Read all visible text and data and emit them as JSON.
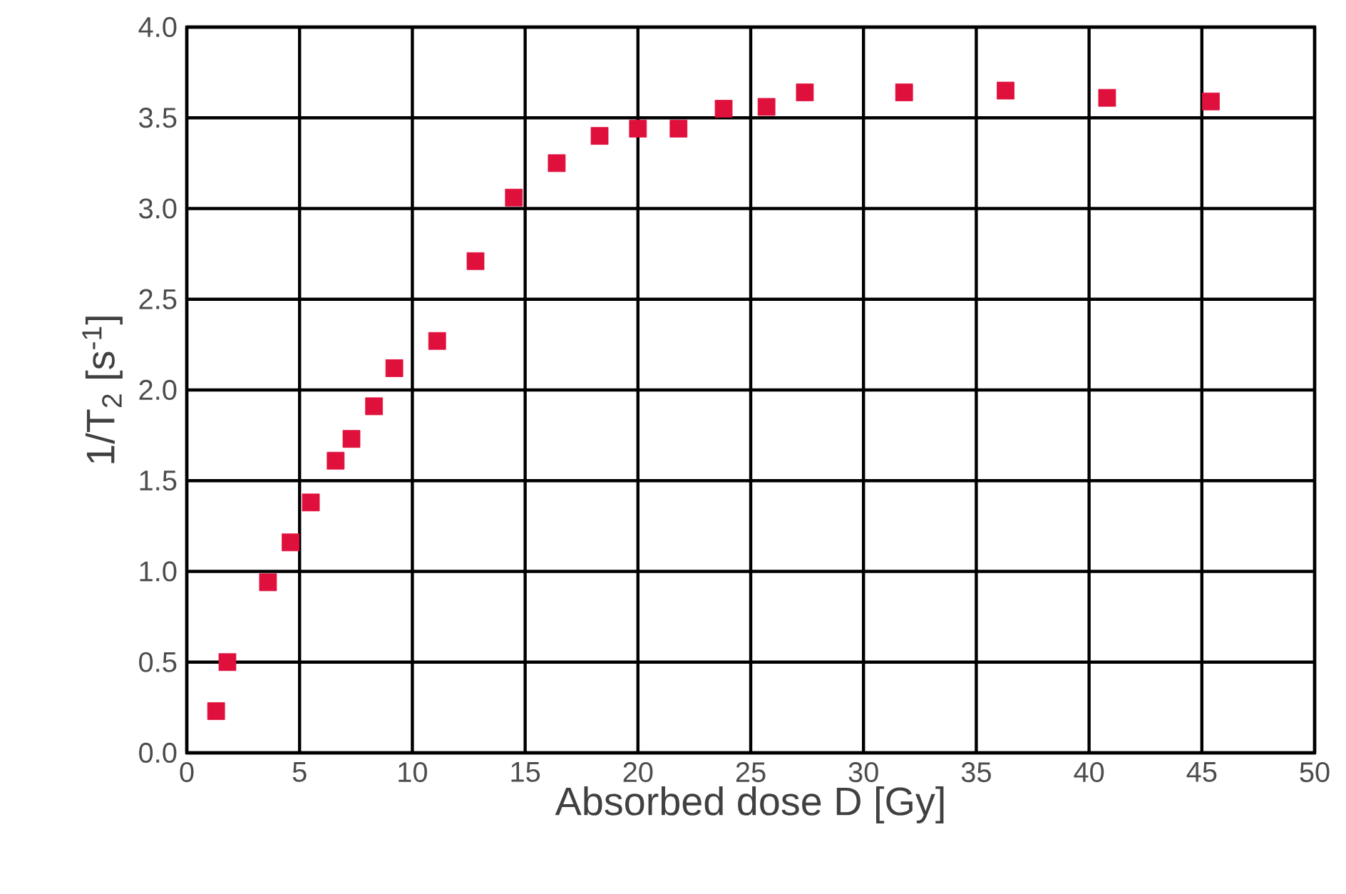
{
  "chart_data": {
    "type": "scatter",
    "xlabel": "Absorbed dose D [Gy]",
    "ylabel": "1/T$_{2}$ [s$^{-1}$]",
    "x": [
      1.3,
      1.8,
      3.6,
      4.6,
      5.5,
      6.6,
      7.3,
      8.3,
      9.2,
      11.1,
      12.8,
      14.5,
      16.4,
      18.3,
      20.0,
      21.8,
      23.8,
      25.7,
      27.4,
      31.8,
      36.3,
      40.8,
      45.4
    ],
    "values": [
      0.23,
      0.5,
      0.94,
      1.16,
      1.38,
      1.61,
      1.73,
      1.91,
      2.12,
      2.27,
      2.71,
      3.06,
      3.25,
      3.4,
      3.44,
      3.44,
      3.55,
      3.56,
      3.64,
      3.64,
      3.65,
      3.61,
      3.59
    ],
    "color": "#e0103c",
    "marker": "square",
    "grid": true,
    "xlim": [
      0,
      50
    ],
    "xticks": [
      0,
      5,
      10,
      15,
      20,
      25,
      30,
      35,
      40,
      45,
      50
    ],
    "ylim": [
      0,
      4
    ],
    "yticks": [
      {
        "value": 0,
        "label": "0.0"
      },
      {
        "value": 0.5,
        "label": "0.5"
      },
      {
        "value": 1,
        "label": "1.0"
      },
      {
        "value": 1.5,
        "label": "1.5"
      },
      {
        "value": 2,
        "label": "2.0"
      },
      {
        "value": 2.5,
        "label": "2.5"
      },
      {
        "value": 3,
        "label": "3.0"
      },
      {
        "value": 3.5,
        "label": "3.5"
      },
      {
        "value": 4,
        "label": "4.0"
      }
    ]
  }
}
